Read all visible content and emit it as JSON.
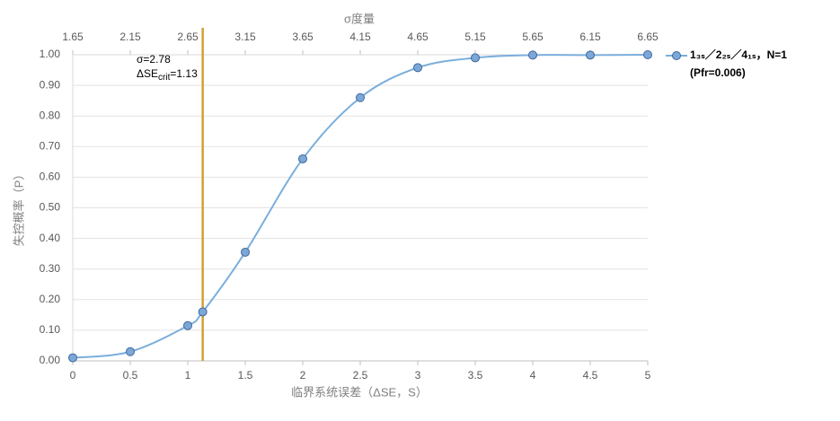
{
  "chart_data": {
    "type": "line",
    "x_title": "临界系统误差（ΔSE，S）",
    "x2_title": "σ度量",
    "y_title": "失控概率（P）",
    "series": [
      {
        "name": "1₃ₛ／2₂ₛ／4₁ₛ，N=1",
        "subtitle": "(Pfr=0.006)",
        "color": "#7aaedc",
        "marker_color": "#7ba7d9",
        "x": [
          0,
          0.5,
          1,
          1.13,
          1.5,
          2,
          2.5,
          3,
          3.5,
          4,
          4.5,
          5
        ],
        "values": [
          0.01,
          0.03,
          0.115,
          0.16,
          0.355,
          0.66,
          0.86,
          0.958,
          0.99,
          0.999,
          0.999,
          1.0
        ]
      }
    ],
    "vline": {
      "x": 1.13,
      "color": "#d4a030"
    },
    "annotation": {
      "line1": "σ=2.78",
      "line2_main": "ΔSE",
      "line2_sub": "crit",
      "line2_end": "=1.13"
    },
    "xlim": [
      0,
      5
    ],
    "xticks": [
      0,
      0.5,
      1,
      1.5,
      2,
      2.5,
      3,
      3.5,
      4,
      4.5,
      5
    ],
    "x2lim": [
      1.65,
      6.65
    ],
    "x2ticks": [
      1.65,
      2.15,
      2.65,
      3.15,
      3.65,
      4.15,
      4.65,
      5.15,
      5.65,
      6.15,
      6.65
    ],
    "ylim": [
      0,
      1
    ],
    "yticks": [
      {
        "value": 0,
        "label": "0.00"
      },
      {
        "value": 0.1,
        "label": "0.10"
      },
      {
        "value": 0.2,
        "label": "0.20"
      },
      {
        "value": 0.3,
        "label": "0.30"
      },
      {
        "value": 0.4,
        "label": "0.40"
      },
      {
        "value": 0.5,
        "label": "0.50"
      },
      {
        "value": 0.6,
        "label": "0.60"
      },
      {
        "value": 0.7,
        "label": "0.70"
      },
      {
        "value": 0.8,
        "label": "0.80"
      },
      {
        "value": 0.9,
        "label": "0.90"
      },
      {
        "value": 1,
        "label": "1.00"
      }
    ],
    "grid": true,
    "legend": "right"
  }
}
